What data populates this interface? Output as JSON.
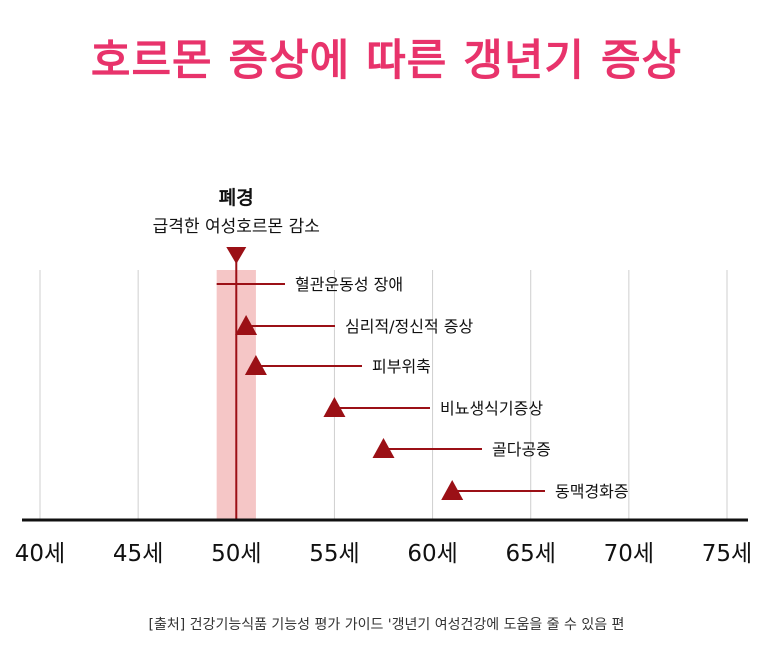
{
  "title": "호르몬 증상에 따른 갱년기 증상",
  "source": "[출처] 건강기능식품 기능성 평가 가이드 '갱년기 여성건강에 도움을 줄 수 있음 편",
  "chart_data": {
    "type": "scatter",
    "title": "호르몬 증상에 따른 갱년기 증상",
    "xlabel": "",
    "ylabel": "",
    "xlim": [
      40,
      75
    ],
    "x_ticks": [
      40,
      45,
      50,
      55,
      60,
      65,
      70,
      75
    ],
    "x_tick_labels": [
      "40세",
      "45세",
      "50세",
      "55세",
      "60세",
      "65세",
      "70세",
      "75세"
    ],
    "grid": "vertical",
    "colors": {
      "marker": "#9b1016",
      "band": "#f5c6c6",
      "title": "#e8336b",
      "grid": "#cfcfcf",
      "axis": "#111111"
    },
    "menopause": {
      "age": 50,
      "band": [
        49,
        51
      ],
      "title": "폐경",
      "subtitle": "급격한 여성호르몬 감소"
    },
    "points": [
      {
        "label": "혈관운동성 장애",
        "x": 49,
        "marker": false
      },
      {
        "label": "심리적/정신적 증상",
        "x": 50.5,
        "marker": true
      },
      {
        "label": "피부위축",
        "x": 51,
        "marker": true
      },
      {
        "label": "비뇨생식기증상",
        "x": 55,
        "marker": true
      },
      {
        "label": "골다공증",
        "x": 57.5,
        "marker": true
      },
      {
        "label": "동맥경화증",
        "x": 61,
        "marker": true
      }
    ]
  }
}
